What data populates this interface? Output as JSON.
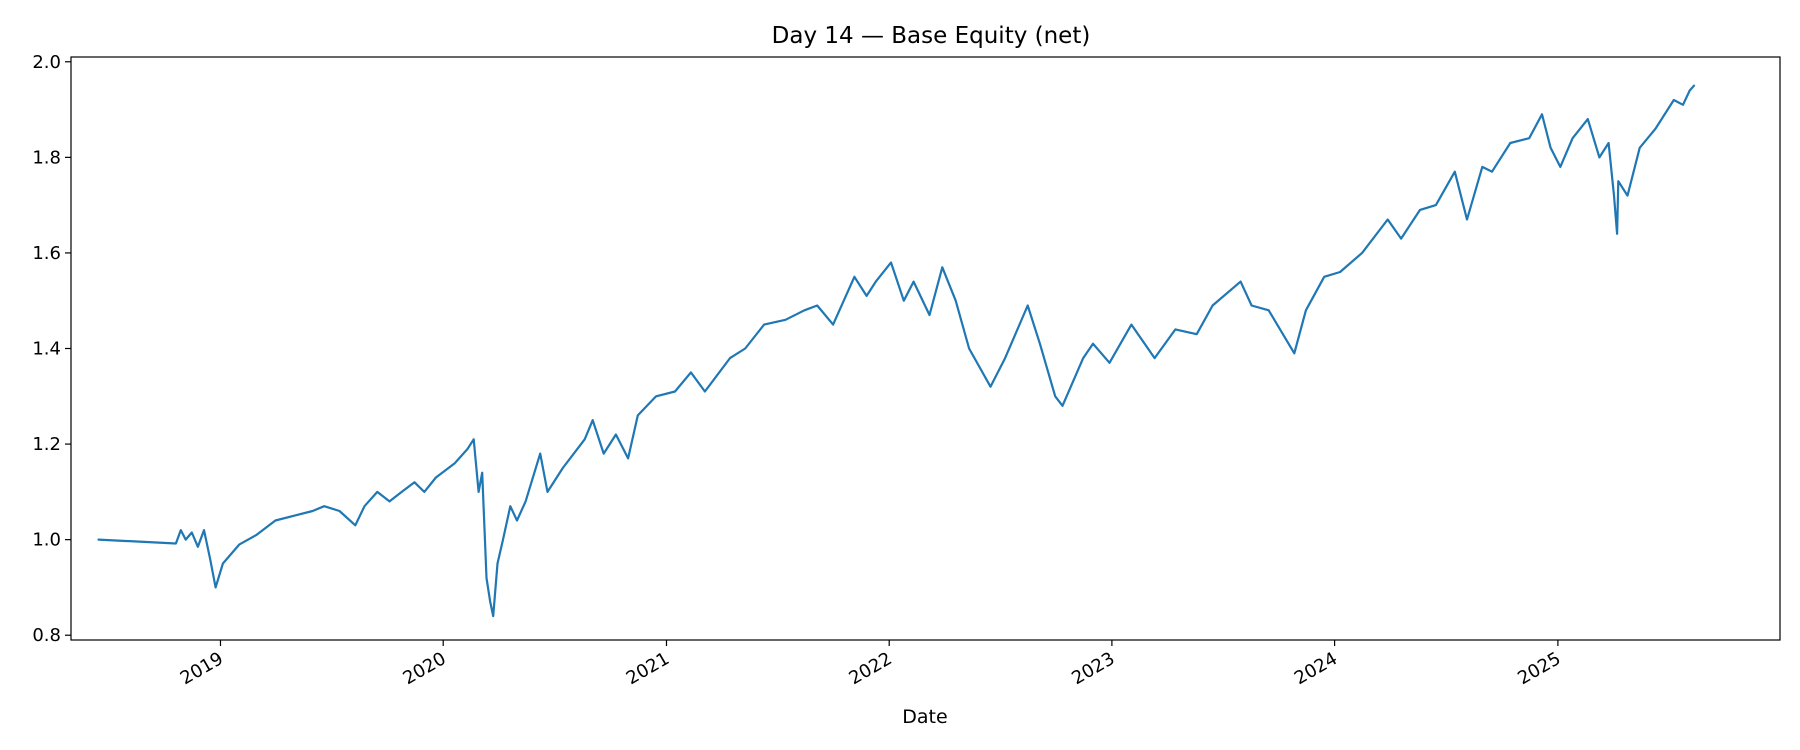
{
  "chart_data": {
    "type": "line",
    "title": "Day 14 — Base Equity (net)",
    "xlabel": "Date",
    "ylabel": "",
    "grid": false,
    "legend": "none",
    "x_range": [
      "2018-05-01",
      "2025-12-31"
    ],
    "ylim": [
      0.79,
      2.01
    ],
    "y_ticks": [
      "0.8",
      "1.0",
      "1.2",
      "1.4",
      "1.6",
      "1.8",
      "2.0"
    ],
    "x_ticks": [
      {
        "date": "2019-01-01",
        "label": "2019"
      },
      {
        "date": "2020-01-01",
        "label": "2020"
      },
      {
        "date": "2021-01-01",
        "label": "2021"
      },
      {
        "date": "2022-01-01",
        "label": "2022"
      },
      {
        "date": "2023-01-01",
        "label": "2023"
      },
      {
        "date": "2024-01-01",
        "label": "2024"
      },
      {
        "date": "2025-01-01",
        "label": "2025"
      }
    ],
    "series": [
      {
        "color": "#1f77b4",
        "points": [
          [
            "2018-06-15",
            1.0
          ],
          [
            "2018-10-20",
            0.992
          ],
          [
            "2018-10-28",
            1.02
          ],
          [
            "2018-11-05",
            1.0
          ],
          [
            "2018-11-15",
            1.015
          ],
          [
            "2018-11-25",
            0.985
          ],
          [
            "2018-12-05",
            1.02
          ],
          [
            "2018-12-15",
            0.96
          ],
          [
            "2018-12-24",
            0.9
          ],
          [
            "2019-01-05",
            0.95
          ],
          [
            "2019-02-01",
            0.99
          ],
          [
            "2019-03-01",
            1.01
          ],
          [
            "2019-04-01",
            1.04
          ],
          [
            "2019-05-01",
            1.05
          ],
          [
            "2019-06-01",
            1.06
          ],
          [
            "2019-06-20",
            1.07
          ],
          [
            "2019-07-15",
            1.06
          ],
          [
            "2019-08-10",
            1.03
          ],
          [
            "2019-08-25",
            1.07
          ],
          [
            "2019-09-15",
            1.1
          ],
          [
            "2019-10-05",
            1.08
          ],
          [
            "2019-10-25",
            1.1
          ],
          [
            "2019-11-15",
            1.12
          ],
          [
            "2019-12-01",
            1.1
          ],
          [
            "2019-12-20",
            1.13
          ],
          [
            "2020-01-20",
            1.16
          ],
          [
            "2020-02-10",
            1.19
          ],
          [
            "2020-02-20",
            1.21
          ],
          [
            "2020-02-28",
            1.1
          ],
          [
            "2020-03-05",
            1.14
          ],
          [
            "2020-03-12",
            0.92
          ],
          [
            "2020-03-18",
            0.87
          ],
          [
            "2020-03-23",
            0.84
          ],
          [
            "2020-03-30",
            0.95
          ],
          [
            "2020-04-08",
            1.0
          ],
          [
            "2020-04-20",
            1.07
          ],
          [
            "2020-05-01",
            1.04
          ],
          [
            "2020-05-15",
            1.08
          ],
          [
            "2020-06-08",
            1.18
          ],
          [
            "2020-06-20",
            1.1
          ],
          [
            "2020-07-15",
            1.15
          ],
          [
            "2020-08-20",
            1.21
          ],
          [
            "2020-09-02",
            1.25
          ],
          [
            "2020-09-20",
            1.18
          ],
          [
            "2020-10-10",
            1.22
          ],
          [
            "2020-10-30",
            1.17
          ],
          [
            "2020-11-15",
            1.26
          ],
          [
            "2020-12-15",
            1.3
          ],
          [
            "2021-01-15",
            1.31
          ],
          [
            "2021-02-10",
            1.35
          ],
          [
            "2021-03-05",
            1.31
          ],
          [
            "2021-04-15",
            1.38
          ],
          [
            "2021-05-10",
            1.4
          ],
          [
            "2021-06-10",
            1.45
          ],
          [
            "2021-07-15",
            1.46
          ],
          [
            "2021-08-15",
            1.48
          ],
          [
            "2021-09-05",
            1.49
          ],
          [
            "2021-10-01",
            1.45
          ],
          [
            "2021-11-05",
            1.55
          ],
          [
            "2021-11-25",
            1.51
          ],
          [
            "2021-12-10",
            1.54
          ],
          [
            "2022-01-04",
            1.58
          ],
          [
            "2022-01-25",
            1.5
          ],
          [
            "2022-02-10",
            1.54
          ],
          [
            "2022-03-08",
            1.47
          ],
          [
            "2022-03-29",
            1.57
          ],
          [
            "2022-04-20",
            1.5
          ],
          [
            "2022-05-12",
            1.4
          ],
          [
            "2022-06-16",
            1.32
          ],
          [
            "2022-07-10",
            1.38
          ],
          [
            "2022-08-16",
            1.49
          ],
          [
            "2022-09-05",
            1.41
          ],
          [
            "2022-09-30",
            1.3
          ],
          [
            "2022-10-12",
            1.28
          ],
          [
            "2022-11-15",
            1.38
          ],
          [
            "2022-12-01",
            1.41
          ],
          [
            "2022-12-28",
            1.37
          ],
          [
            "2023-02-02",
            1.45
          ],
          [
            "2023-03-12",
            1.38
          ],
          [
            "2023-04-15",
            1.44
          ],
          [
            "2023-05-20",
            1.43
          ],
          [
            "2023-06-15",
            1.49
          ],
          [
            "2023-07-31",
            1.54
          ],
          [
            "2023-08-18",
            1.49
          ],
          [
            "2023-09-15",
            1.48
          ],
          [
            "2023-10-27",
            1.39
          ],
          [
            "2023-11-15",
            1.48
          ],
          [
            "2023-12-15",
            1.55
          ],
          [
            "2024-01-10",
            1.56
          ],
          [
            "2024-02-15",
            1.6
          ],
          [
            "2024-03-28",
            1.67
          ],
          [
            "2024-04-19",
            1.63
          ],
          [
            "2024-05-20",
            1.69
          ],
          [
            "2024-06-15",
            1.7
          ],
          [
            "2024-07-16",
            1.77
          ],
          [
            "2024-08-05",
            1.67
          ],
          [
            "2024-08-30",
            1.78
          ],
          [
            "2024-09-15",
            1.77
          ],
          [
            "2024-10-15",
            1.83
          ],
          [
            "2024-11-15",
            1.84
          ],
          [
            "2024-12-06",
            1.89
          ],
          [
            "2024-12-20",
            1.82
          ],
          [
            "2025-01-05",
            1.78
          ],
          [
            "2025-01-25",
            1.84
          ],
          [
            "2025-02-19",
            1.88
          ],
          [
            "2025-03-10",
            1.8
          ],
          [
            "2025-03-25",
            1.83
          ],
          [
            "2025-04-03",
            1.72
          ],
          [
            "2025-04-08",
            1.64
          ],
          [
            "2025-04-10",
            1.75
          ],
          [
            "2025-04-25",
            1.72
          ],
          [
            "2025-05-15",
            1.82
          ],
          [
            "2025-06-10",
            1.86
          ],
          [
            "2025-07-10",
            1.92
          ],
          [
            "2025-07-25",
            1.91
          ],
          [
            "2025-08-05",
            1.94
          ],
          [
            "2025-08-12",
            1.95
          ]
        ]
      }
    ]
  }
}
